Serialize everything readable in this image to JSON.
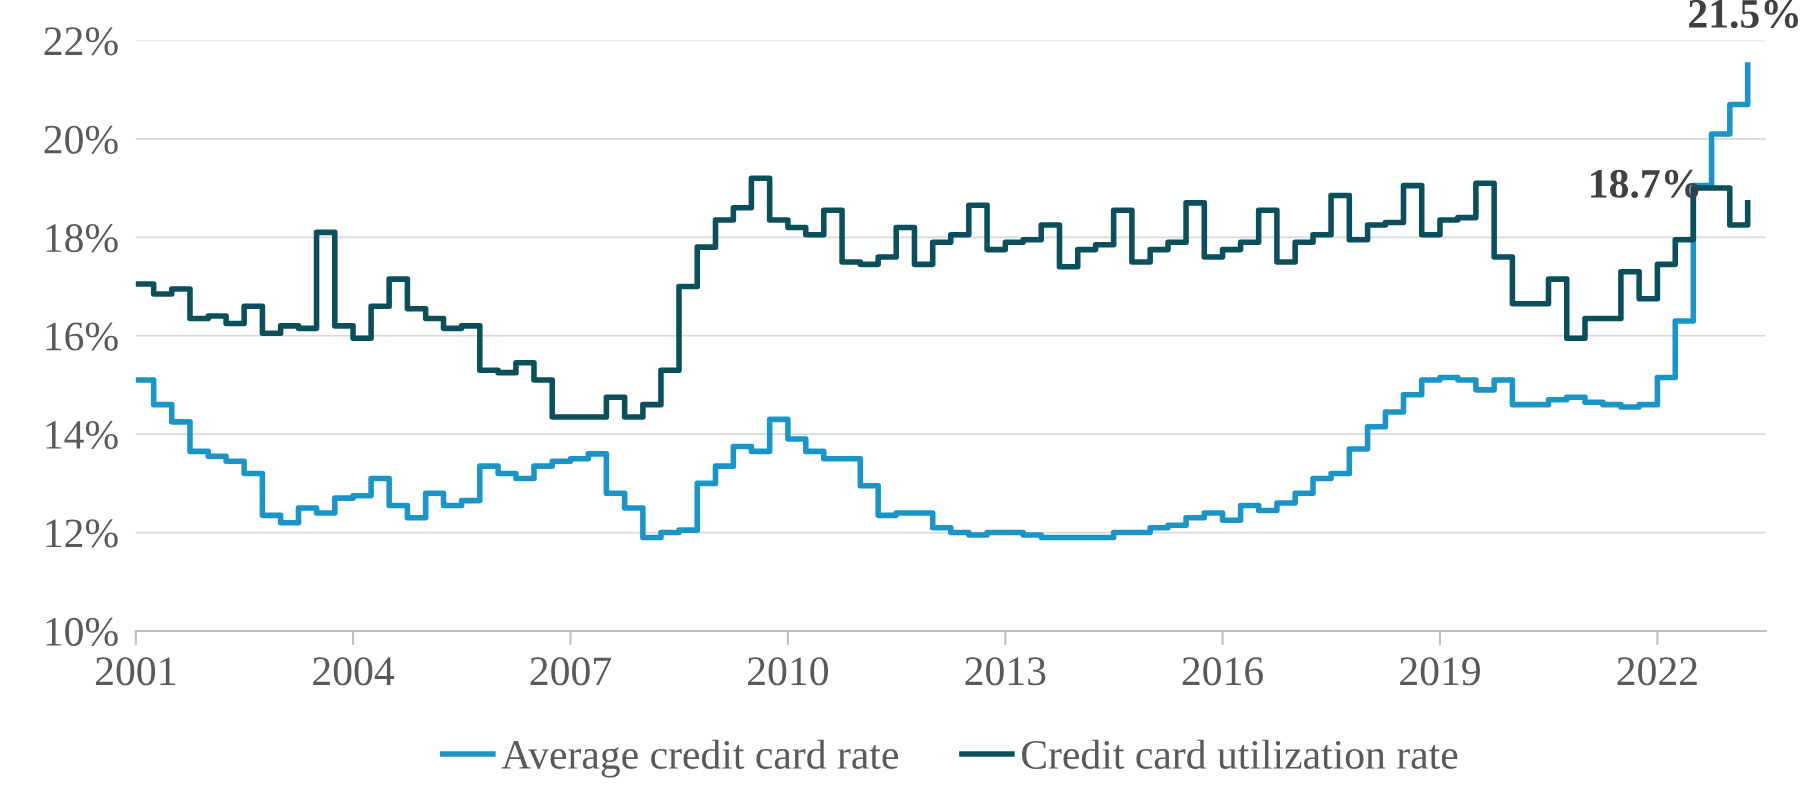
{
  "chart_data": {
    "type": "step",
    "x": [
      "2001-01",
      "2001-04",
      "2001-07",
      "2001-10",
      "2002-01",
      "2002-04",
      "2002-07",
      "2002-10",
      "2003-01",
      "2003-04",
      "2003-07",
      "2003-10",
      "2004-01",
      "2004-04",
      "2004-07",
      "2004-10",
      "2005-01",
      "2005-04",
      "2005-07",
      "2005-10",
      "2006-01",
      "2006-04",
      "2006-07",
      "2006-10",
      "2007-01",
      "2007-04",
      "2007-07",
      "2007-10",
      "2008-01",
      "2008-04",
      "2008-07",
      "2008-10",
      "2009-01",
      "2009-04",
      "2009-07",
      "2009-10",
      "2010-01",
      "2010-04",
      "2010-07",
      "2010-10",
      "2011-01",
      "2011-04",
      "2011-07",
      "2011-10",
      "2012-01",
      "2012-04",
      "2012-07",
      "2012-10",
      "2013-01",
      "2013-04",
      "2013-07",
      "2013-10",
      "2014-01",
      "2014-04",
      "2014-07",
      "2014-10",
      "2015-01",
      "2015-04",
      "2015-07",
      "2015-10",
      "2016-01",
      "2016-04",
      "2016-07",
      "2016-10",
      "2017-01",
      "2017-04",
      "2017-07",
      "2017-10",
      "2018-01",
      "2018-04",
      "2018-07",
      "2018-10",
      "2019-01",
      "2019-04",
      "2019-07",
      "2019-10",
      "2020-01",
      "2020-04",
      "2020-07",
      "2020-10",
      "2021-01",
      "2021-04",
      "2021-07",
      "2021-10",
      "2022-01",
      "2022-04",
      "2022-07",
      "2022-10",
      "2023-01",
      "2023-04"
    ],
    "series": [
      {
        "name": "Average credit card rate",
        "color": "#1a95c6",
        "values": [
          15.1,
          14.6,
          14.25,
          13.65,
          13.55,
          13.45,
          13.2,
          12.35,
          12.2,
          12.5,
          12.4,
          12.7,
          12.75,
          13.1,
          12.55,
          12.3,
          12.8,
          12.55,
          12.65,
          13.35,
          13.2,
          13.1,
          13.35,
          13.45,
          13.5,
          13.6,
          12.8,
          12.5,
          11.9,
          12.0,
          12.05,
          13.0,
          13.35,
          13.75,
          13.65,
          14.3,
          13.9,
          13.65,
          13.5,
          13.5,
          12.95,
          12.35,
          12.4,
          12.4,
          12.1,
          12.0,
          11.95,
          12.0,
          12.0,
          11.95,
          11.9,
          11.9,
          11.9,
          11.9,
          12.0,
          12.0,
          12.1,
          12.15,
          12.3,
          12.4,
          12.25,
          12.55,
          12.45,
          12.6,
          12.8,
          13.1,
          13.2,
          13.7,
          14.15,
          14.45,
          14.8,
          15.1,
          15.15,
          15.1,
          14.9,
          15.1,
          14.6,
          14.6,
          14.7,
          14.75,
          14.65,
          14.6,
          14.55,
          14.6,
          15.15,
          16.3,
          19.05,
          20.1,
          20.7,
          21.5
        ]
      },
      {
        "name": "Credit card utilization rate",
        "color": "#0b4f5a",
        "values": [
          17.05,
          16.85,
          16.95,
          16.35,
          16.4,
          16.25,
          16.6,
          16.05,
          16.2,
          16.15,
          18.1,
          16.2,
          15.95,
          16.6,
          17.15,
          16.55,
          16.35,
          16.15,
          16.2,
          15.3,
          15.25,
          15.45,
          15.1,
          14.35,
          14.35,
          14.35,
          14.75,
          14.35,
          14.6,
          15.3,
          17.0,
          17.8,
          18.35,
          18.6,
          19.2,
          18.35,
          18.2,
          18.05,
          18.55,
          17.5,
          17.45,
          17.6,
          18.2,
          17.45,
          17.9,
          18.05,
          18.65,
          17.75,
          17.9,
          17.95,
          18.25,
          17.4,
          17.75,
          17.85,
          18.55,
          17.5,
          17.75,
          17.9,
          18.7,
          17.6,
          17.75,
          17.9,
          18.55,
          17.5,
          17.9,
          18.05,
          18.85,
          17.95,
          18.25,
          18.3,
          19.05,
          18.05,
          18.35,
          18.4,
          19.1,
          17.6,
          16.65,
          16.65,
          17.15,
          15.95,
          16.35,
          16.35,
          17.3,
          16.75,
          17.45,
          17.95,
          19.0,
          19.0,
          18.25,
          18.7
        ]
      }
    ],
    "xlim": [
      "2001-01",
      "2023-07"
    ],
    "xticks": [
      "2001",
      "2004",
      "2007",
      "2010",
      "2013",
      "2016",
      "2019",
      "2022"
    ],
    "ylim": [
      10,
      22
    ],
    "yticks": [
      {
        "value": 10,
        "label": "10%"
      },
      {
        "value": 12,
        "label": "12%"
      },
      {
        "value": 14,
        "label": "14%"
      },
      {
        "value": 16,
        "label": "16%"
      },
      {
        "value": 18,
        "label": "18%"
      },
      {
        "value": 20,
        "label": "20%"
      },
      {
        "value": 22,
        "label": "22%"
      }
    ],
    "grid": "y",
    "legend": "bottom",
    "annotations": [
      "21.5%",
      "18.7%"
    ]
  }
}
